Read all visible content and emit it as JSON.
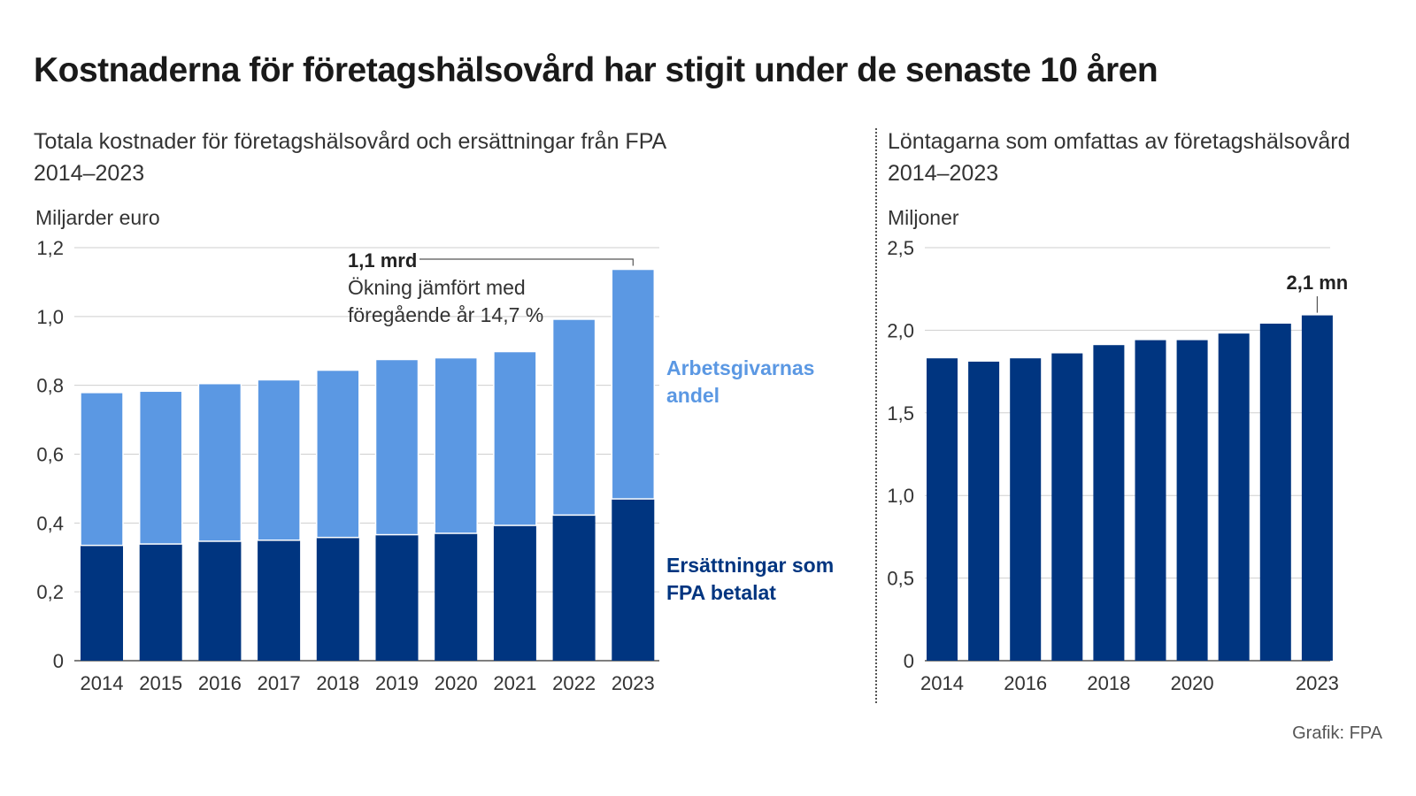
{
  "title": "Kostnaderna för företagshälsovård har stigit under de senaste 10 åren",
  "credit": "Grafik: FPA",
  "colors": {
    "dark": "#003580",
    "light": "#5b98e3",
    "grid": "#cfcfcf",
    "text": "#333333"
  },
  "chart_data": [
    {
      "type": "bar",
      "stacked": true,
      "subtitle_lines": [
        "Totala kostnader för företagshälsovård och ersättningar från FPA",
        "2014–2023"
      ],
      "ylabel": "Miljarder euro",
      "ylim": [
        0,
        1.2
      ],
      "yticks": [
        "0",
        "0,2",
        "0,4",
        "0,6",
        "0,8",
        "1,0",
        "1,2"
      ],
      "grid": true,
      "categories": [
        "2014",
        "2015",
        "2016",
        "2017",
        "2018",
        "2019",
        "2020",
        "2021",
        "2022",
        "2023"
      ],
      "series": [
        {
          "name": "Ersättningar som FPA betalat",
          "name_lines": [
            "Ersättningar som",
            "FPA betalat"
          ],
          "color": "#003580",
          "values": [
            0.335,
            0.339,
            0.347,
            0.35,
            0.358,
            0.366,
            0.37,
            0.393,
            0.423,
            0.47
          ]
        },
        {
          "name": "Arbetsgivarnas andel",
          "name_lines": [
            "Arbetsgivarnas",
            "andel"
          ],
          "color": "#5b98e3",
          "values": [
            0.444,
            0.444,
            0.458,
            0.466,
            0.486,
            0.509,
            0.51,
            0.505,
            0.569,
            0.667
          ]
        }
      ],
      "annotation": {
        "category": "2023",
        "value": "1,1 mrd",
        "lines": [
          "Ökning jämfört med",
          "föregående år 14,7 %"
        ]
      }
    },
    {
      "type": "bar",
      "subtitle_lines": [
        "Löntagarna som omfattas av företagshälsovård",
        "2014–2023"
      ],
      "ylabel": "Miljoner",
      "ylim": [
        0,
        2.5
      ],
      "yticks": [
        "0",
        "0,5",
        "1,0",
        "1,5",
        "2,0",
        "2,5"
      ],
      "grid": true,
      "categories": [
        "2014",
        "2015",
        "2016",
        "2017",
        "2018",
        "2019",
        "2020",
        "2021",
        "2022",
        "2023"
      ],
      "xtick_labels": [
        "2014",
        "",
        "2016",
        "",
        "2018",
        "",
        "2020",
        "",
        "",
        "2023"
      ],
      "series": [
        {
          "color": "#003580",
          "values": [
            1.83,
            1.81,
            1.83,
            1.86,
            1.91,
            1.94,
            1.94,
            1.98,
            2.04,
            2.09
          ]
        }
      ],
      "annotation": {
        "category": "2023",
        "value": "2,1 mn"
      }
    }
  ]
}
